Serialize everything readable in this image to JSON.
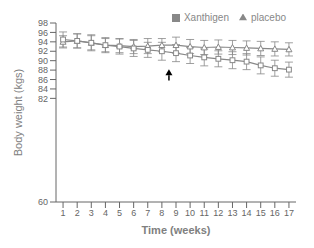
{
  "chart_data": {
    "type": "line",
    "x": [
      1,
      2,
      3,
      4,
      5,
      6,
      7,
      8,
      9,
      10,
      11,
      12,
      13,
      14,
      15,
      16,
      17
    ],
    "series": [
      {
        "name": "placebo",
        "color": "#888888",
        "marker": "triangle",
        "line_style": "solid",
        "values": [
          94.0,
          94.2,
          93.8,
          93.3,
          93.2,
          93.0,
          93.1,
          93.3,
          93.3,
          93.0,
          92.8,
          92.9,
          92.8,
          92.7,
          92.6,
          92.5,
          92.4
        ],
        "error": [
          1.3,
          1.5,
          1.5,
          1.4,
          1.5,
          1.5,
          1.6,
          1.4,
          1.7,
          1.5,
          1.5,
          1.5,
          1.5,
          1.5,
          1.5,
          1.5,
          1.4
        ]
      },
      {
        "name": "Xanthigen",
        "color": "#888888",
        "marker": "square",
        "line_style": "solid",
        "values": [
          94.5,
          94.2,
          93.8,
          93.3,
          93.0,
          92.6,
          92.3,
          92.0,
          91.6,
          91.1,
          90.7,
          90.4,
          90.1,
          89.8,
          89.0,
          88.4,
          88.1
        ],
        "error": [
          1.6,
          1.5,
          1.7,
          1.6,
          1.6,
          1.7,
          1.6,
          1.9,
          1.8,
          1.7,
          1.8,
          1.7,
          1.8,
          1.7,
          1.8,
          1.7,
          1.6
        ]
      }
    ],
    "xlabel": "Time (weeks)",
    "ylabel": "Body weight (kgs)",
    "xlim": [
      0.5,
      17.5
    ],
    "xticks": [
      1,
      2,
      3,
      4,
      5,
      6,
      7,
      8,
      9,
      10,
      11,
      12,
      13,
      14,
      15,
      16,
      17
    ],
    "ylim": [
      60,
      98
    ],
    "yticks": [
      60,
      82,
      84,
      86,
      88,
      90,
      92,
      94,
      96,
      98
    ],
    "annotations": [
      {
        "type": "arrow",
        "x": 8.5,
        "y_start": 85.8,
        "y_end": 88.2
      }
    ],
    "legend": "upper right",
    "grid": false
  }
}
